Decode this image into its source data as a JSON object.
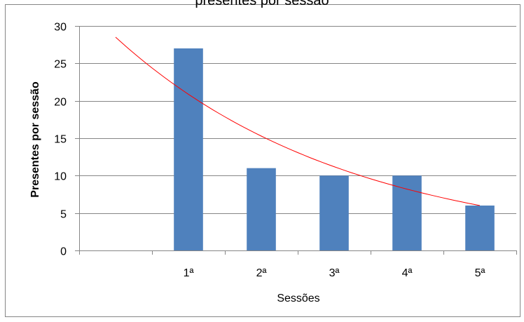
{
  "chart_data": {
    "type": "bar",
    "title": "presentes por sessão",
    "xlabel": "Sessões",
    "ylabel": "Presentes por sessão",
    "categories": [
      "",
      "1ª",
      "2ª",
      "3ª",
      "4ª",
      "5ª"
    ],
    "values": [
      null,
      27,
      11,
      10,
      10,
      6
    ],
    "ylim": [
      0,
      30
    ],
    "yticks": [
      "0",
      "5",
      "10",
      "15",
      "20",
      "25",
      "30"
    ],
    "grid": true,
    "legend": "none",
    "trendline": {
      "type": "exponential",
      "points": [
        [
          0,
          28.5
        ],
        [
          1,
          20.3
        ],
        [
          2,
          14.7
        ],
        [
          3,
          10.9
        ],
        [
          4,
          8.2
        ],
        [
          5,
          6.0
        ]
      ]
    },
    "colors": {
      "bar": "#4F81BD",
      "trendline": "#FF0000",
      "gridline": "#868686",
      "frame": "#868686",
      "text": "#000000"
    }
  }
}
